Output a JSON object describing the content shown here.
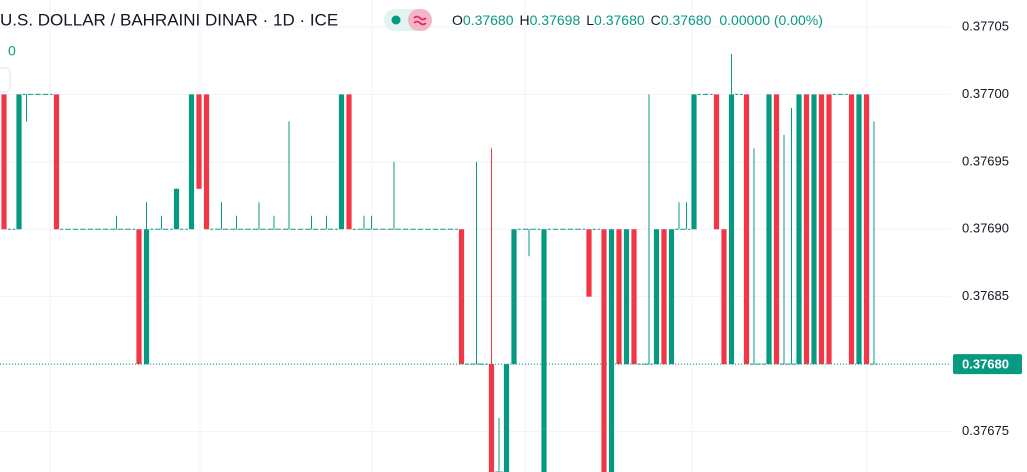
{
  "chart_data": {
    "type": "candlestick",
    "title": "U.S. DOLLAR / BAHRAINI DINAR · 1D · ICE",
    "subtitle": "0",
    "header": {
      "o": "O",
      "open": "0.37680",
      "h": "H",
      "high": "0.37698",
      "l": "L",
      "low": "0.37680",
      "c": "C",
      "close": "0.37680",
      "change": "0.00000 (0.00%)"
    },
    "colors": {
      "up": "#089981",
      "down": "#f23645"
    },
    "ylim": [
      0.37672,
      0.37707
    ],
    "yticks": [
      {
        "value": 0.37675,
        "label": "0.37675"
      },
      {
        "value": 0.3768,
        "label": "0.37680"
      },
      {
        "value": 0.37685,
        "label": "0.37685"
      },
      {
        "value": 0.3769,
        "label": "0.37690"
      },
      {
        "value": 0.37695,
        "label": "0.37695"
      },
      {
        "value": 0.377,
        "label": "0.37700"
      },
      {
        "value": 0.37705,
        "label": "0.37705"
      }
    ],
    "grid": true,
    "last_price": {
      "value": 0.3768,
      "label": "0.37680"
    },
    "ohlc": [
      [
        0.377,
        0.377,
        0.3769,
        0.3769
      ],
      [
        0.3769,
        0.3769,
        0.3769,
        0.3769
      ],
      [
        0.3769,
        0.377,
        0.3769,
        0.377
      ],
      [
        0.377,
        0.377,
        0.37698,
        0.377
      ],
      [
        0.377,
        0.377,
        0.377,
        0.377
      ],
      [
        0.377,
        0.377,
        0.377,
        0.377
      ],
      [
        0.377,
        0.377,
        0.377,
        0.377
      ],
      [
        0.377,
        0.377,
        0.3769,
        0.3769
      ],
      [
        0.3769,
        0.3769,
        0.3769,
        0.3769
      ],
      [
        0.3769,
        0.3769,
        0.3769,
        0.3769
      ],
      [
        0.3769,
        0.3769,
        0.3769,
        0.3769
      ],
      [
        0.3769,
        0.3769,
        0.3769,
        0.3769
      ],
      [
        0.3769,
        0.3769,
        0.3769,
        0.3769
      ],
      [
        0.3769,
        0.3769,
        0.3769,
        0.3769
      ],
      [
        0.3769,
        0.3769,
        0.3769,
        0.3769
      ],
      [
        0.3769,
        0.37691,
        0.3769,
        0.3769
      ],
      [
        0.3769,
        0.3769,
        0.3769,
        0.3769
      ],
      [
        0.3769,
        0.3769,
        0.3769,
        0.3769
      ],
      [
        0.3769,
        0.3769,
        0.3768,
        0.3768
      ],
      [
        0.3768,
        0.37692,
        0.3768,
        0.3769
      ],
      [
        0.3769,
        0.3769,
        0.3769,
        0.3769
      ],
      [
        0.3769,
        0.37691,
        0.3769,
        0.3769
      ],
      [
        0.3769,
        0.3769,
        0.3769,
        0.3769
      ],
      [
        0.3769,
        0.37693,
        0.3769,
        0.37693
      ],
      [
        0.3769,
        0.3769,
        0.3769,
        0.3769
      ],
      [
        0.3769,
        0.377,
        0.3769,
        0.377
      ],
      [
        0.377,
        0.377,
        0.37693,
        0.37693
      ],
      [
        0.377,
        0.377,
        0.3769,
        0.3769
      ],
      [
        0.3769,
        0.3769,
        0.3769,
        0.3769
      ],
      [
        0.3769,
        0.37692,
        0.3769,
        0.3769
      ],
      [
        0.3769,
        0.3769,
        0.3769,
        0.3769
      ],
      [
        0.3769,
        0.37691,
        0.3769,
        0.3769
      ],
      [
        0.3769,
        0.3769,
        0.3769,
        0.3769
      ],
      [
        0.3769,
        0.3769,
        0.3769,
        0.3769
      ],
      [
        0.3769,
        0.37692,
        0.3769,
        0.3769
      ],
      [
        0.3769,
        0.3769,
        0.3769,
        0.3769
      ],
      [
        0.3769,
        0.37691,
        0.3769,
        0.3769
      ],
      [
        0.3769,
        0.3769,
        0.3769,
        0.3769
      ],
      [
        0.3769,
        0.37698,
        0.3769,
        0.3769
      ],
      [
        0.3769,
        0.3769,
        0.3769,
        0.3769
      ],
      [
        0.3769,
        0.3769,
        0.3769,
        0.3769
      ],
      [
        0.3769,
        0.37691,
        0.3769,
        0.3769
      ],
      [
        0.3769,
        0.3769,
        0.3769,
        0.3769
      ],
      [
        0.3769,
        0.37691,
        0.3769,
        0.3769
      ],
      [
        0.3769,
        0.3769,
        0.3769,
        0.3769
      ],
      [
        0.3769,
        0.377,
        0.3769,
        0.377
      ],
      [
        0.377,
        0.377,
        0.3769,
        0.3769
      ],
      [
        0.3769,
        0.3769,
        0.3769,
        0.3769
      ],
      [
        0.3769,
        0.37691,
        0.3769,
        0.3769
      ],
      [
        0.3769,
        0.37691,
        0.3769,
        0.3769
      ],
      [
        0.3769,
        0.3769,
        0.3769,
        0.3769
      ],
      [
        0.3769,
        0.3769,
        0.3769,
        0.3769
      ],
      [
        0.3769,
        0.37695,
        0.3769,
        0.3769
      ],
      [
        0.3769,
        0.3769,
        0.3769,
        0.3769
      ],
      [
        0.3769,
        0.3769,
        0.3769,
        0.3769
      ],
      [
        0.3769,
        0.3769,
        0.3769,
        0.3769
      ],
      [
        0.3769,
        0.3769,
        0.3769,
        0.3769
      ],
      [
        0.3769,
        0.3769,
        0.3769,
        0.3769
      ],
      [
        0.3769,
        0.3769,
        0.3769,
        0.3769
      ],
      [
        0.3769,
        0.3769,
        0.3769,
        0.3769
      ],
      [
        0.3769,
        0.3769,
        0.3769,
        0.3769
      ],
      [
        0.3769,
        0.3769,
        0.3768,
        0.3768
      ],
      [
        0.3768,
        0.3768,
        0.3768,
        0.3768
      ],
      [
        0.3768,
        0.37695,
        0.3768,
        0.3768
      ],
      [
        0.3768,
        0.3768,
        0.3768,
        0.3768
      ],
      [
        0.3768,
        0.37696,
        0.37672,
        0.37672
      ],
      [
        0.37672,
        0.37676,
        0.37672,
        0.37672
      ],
      [
        0.37672,
        0.3768,
        0.37672,
        0.3768
      ],
      [
        0.3768,
        0.3769,
        0.3768,
        0.3769
      ],
      [
        0.3769,
        0.3769,
        0.3769,
        0.3769
      ],
      [
        0.3769,
        0.3769,
        0.37688,
        0.3769
      ],
      [
        0.3769,
        0.3769,
        0.3769,
        0.3769
      ],
      [
        0.37672,
        0.3769,
        0.37672,
        0.3769
      ],
      [
        0.3769,
        0.3769,
        0.3769,
        0.3769
      ],
      [
        0.3769,
        0.3769,
        0.3769,
        0.3769
      ],
      [
        0.3769,
        0.3769,
        0.3769,
        0.3769
      ],
      [
        0.3769,
        0.3769,
        0.3769,
        0.3769
      ],
      [
        0.3769,
        0.3769,
        0.3769,
        0.3769
      ],
      [
        0.3769,
        0.3769,
        0.37685,
        0.37685
      ],
      [
        0.3769,
        0.3769,
        0.3769,
        0.3769
      ],
      [
        0.3769,
        0.3769,
        0.37672,
        0.37672
      ],
      [
        0.37672,
        0.3769,
        0.37672,
        0.3769
      ],
      [
        0.3769,
        0.3769,
        0.3768,
        0.3768
      ],
      [
        0.3768,
        0.3769,
        0.3768,
        0.3769
      ],
      [
        0.3769,
        0.3769,
        0.3768,
        0.3768
      ],
      [
        0.3768,
        0.3768,
        0.3768,
        0.3768
      ],
      [
        0.3768,
        0.377,
        0.3768,
        0.3768
      ],
      [
        0.3768,
        0.3769,
        0.3768,
        0.3769
      ],
      [
        0.3769,
        0.3769,
        0.3768,
        0.3768
      ],
      [
        0.3768,
        0.3769,
        0.3768,
        0.3769
      ],
      [
        0.3769,
        0.37692,
        0.3769,
        0.3769
      ],
      [
        0.3769,
        0.37692,
        0.3769,
        0.3769
      ],
      [
        0.3769,
        0.377,
        0.3769,
        0.377
      ],
      [
        0.377,
        0.377,
        0.377,
        0.377
      ],
      [
        0.377,
        0.377,
        0.377,
        0.377
      ],
      [
        0.377,
        0.377,
        0.3769,
        0.3769
      ],
      [
        0.3769,
        0.3769,
        0.3768,
        0.3768
      ],
      [
        0.3768,
        0.37703,
        0.3768,
        0.377
      ],
      [
        0.377,
        0.377,
        0.377,
        0.377
      ],
      [
        0.377,
        0.377,
        0.3768,
        0.3768
      ],
      [
        0.3768,
        0.37696,
        0.3768,
        0.3768
      ],
      [
        0.3768,
        0.3768,
        0.3768,
        0.3768
      ],
      [
        0.3768,
        0.377,
        0.3768,
        0.377
      ],
      [
        0.377,
        0.377,
        0.3768,
        0.3768
      ],
      [
        0.3768,
        0.37697,
        0.3768,
        0.3768
      ],
      [
        0.3768,
        0.37699,
        0.3768,
        0.3768
      ],
      [
        0.3768,
        0.377,
        0.3768,
        0.377
      ],
      [
        0.377,
        0.377,
        0.3768,
        0.3768
      ],
      [
        0.3768,
        0.377,
        0.3768,
        0.377
      ],
      [
        0.377,
        0.377,
        0.3768,
        0.3768
      ],
      [
        0.377,
        0.377,
        0.3768,
        0.3768
      ],
      [
        0.377,
        0.377,
        0.377,
        0.377
      ],
      [
        0.377,
        0.377,
        0.377,
        0.377
      ],
      [
        0.377,
        0.377,
        0.3768,
        0.3768
      ],
      [
        0.3768,
        0.377,
        0.3768,
        0.377
      ],
      [
        0.377,
        0.377,
        0.3768,
        0.3768
      ],
      [
        0.3768,
        0.37698,
        0.3768,
        0.3768
      ]
    ]
  }
}
